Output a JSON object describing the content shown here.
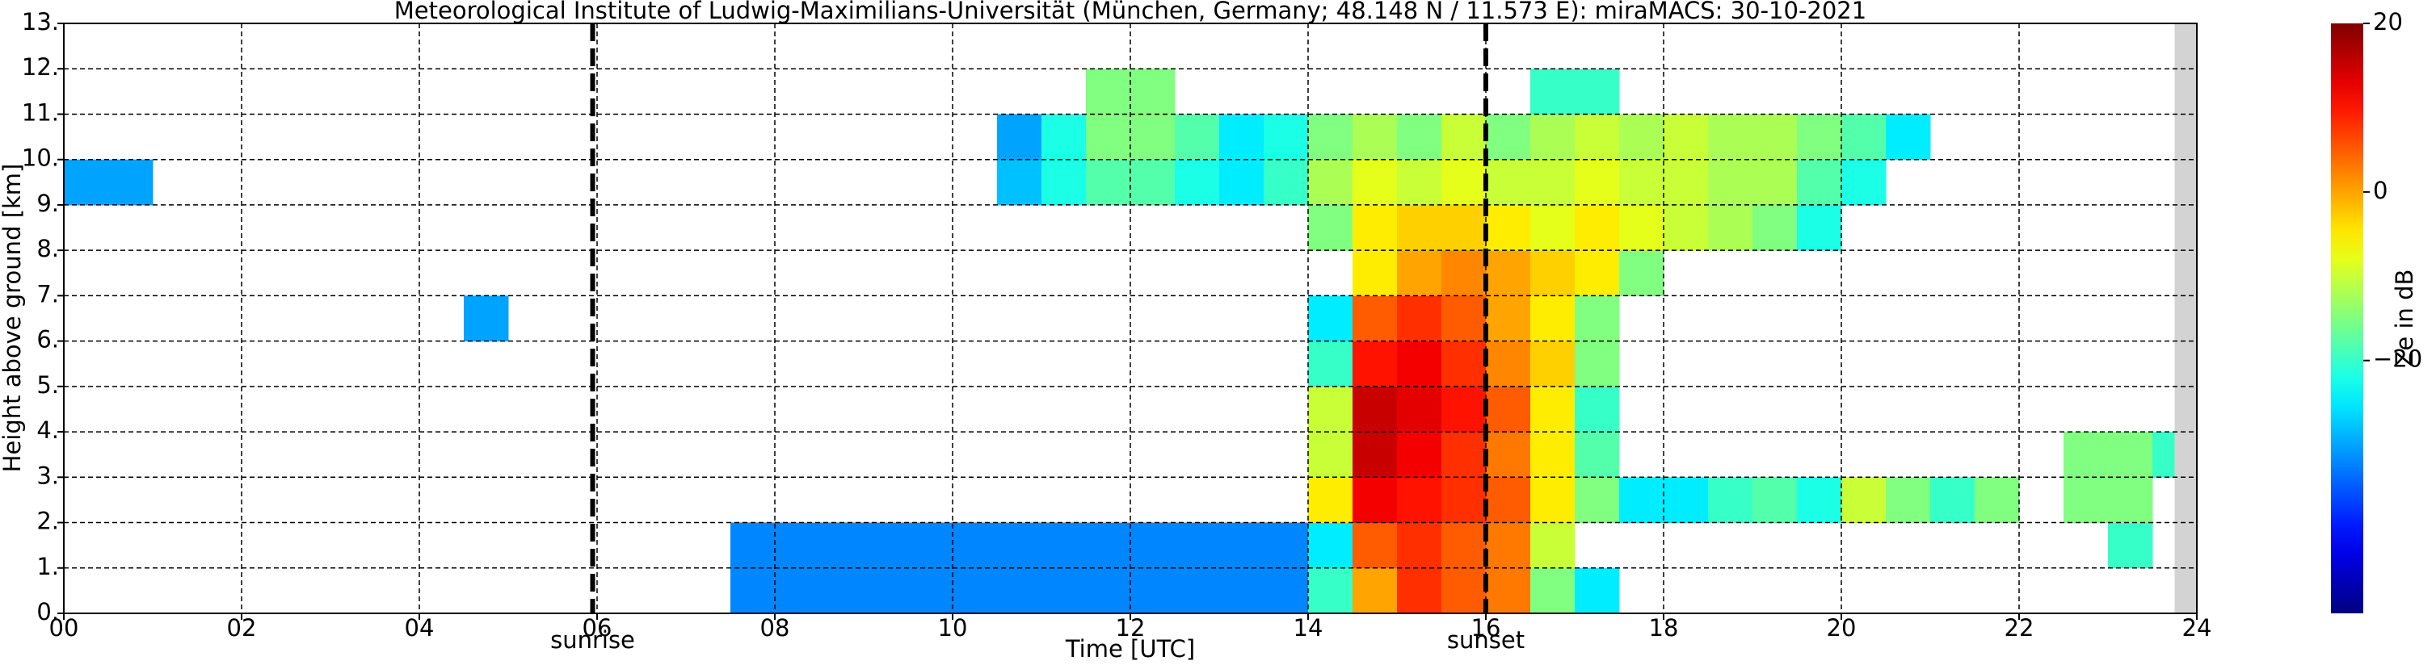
{
  "chart_data": {
    "type": "heatmap",
    "title": "Meteorological Institute of Ludwig-Maximilians-Universität (München, Germany; 48.148 N / 11.573 E):    miraMACS: 30-10-2021",
    "x_label": "Time [UTC]",
    "y_label": "Height above ground [km]",
    "colorbar_label": "Ze in dB",
    "colormap": "jet",
    "clim": [
      -50,
      20
    ],
    "cticks": [
      20,
      0,
      {
        "value": -20,
        "label": "−20"
      }
    ],
    "xlim": [
      0,
      24
    ],
    "ylim": [
      0,
      13
    ],
    "xticks": [
      {
        "value": 0,
        "label": "00"
      },
      {
        "value": 2,
        "label": "02"
      },
      {
        "value": 4,
        "label": "04"
      },
      {
        "value": 6,
        "label": "06"
      },
      {
        "value": 8,
        "label": "08"
      },
      {
        "value": 10,
        "label": "10"
      },
      {
        "value": 12,
        "label": "12"
      },
      {
        "value": 14,
        "label": "14"
      },
      {
        "value": 16,
        "label": "16"
      },
      {
        "value": 18,
        "label": "18"
      },
      {
        "value": 20,
        "label": "20"
      },
      {
        "value": 22,
        "label": "22"
      },
      {
        "value": 24,
        "label": "24"
      }
    ],
    "yticks": [
      {
        "value": 0,
        "label": "0."
      },
      {
        "value": 1,
        "label": "1."
      },
      {
        "value": 2,
        "label": "2."
      },
      {
        "value": 3,
        "label": "3."
      },
      {
        "value": 4,
        "label": "4."
      },
      {
        "value": 5,
        "label": "5."
      },
      {
        "value": 6,
        "label": "6."
      },
      {
        "value": 7,
        "label": "7."
      },
      {
        "value": 8,
        "label": "8."
      },
      {
        "value": 9,
        "label": "9."
      },
      {
        "value": 10,
        "label": "10."
      },
      {
        "value": 11,
        "label": "11."
      },
      {
        "value": 12,
        "label": "12."
      },
      {
        "value": 13,
        "label": "13."
      }
    ],
    "grid": true,
    "markers": [
      {
        "x": 5.95,
        "label": "sunrise"
      },
      {
        "x": 16.0,
        "label": "sunset"
      }
    ],
    "no_data_xlim": [
      23.75,
      24
    ],
    "no_data_color": "#d3d3d3",
    "x": [
      0,
      0.5,
      1,
      1.5,
      2,
      2.5,
      3,
      3.5,
      4,
      4.5,
      5,
      5.5,
      6,
      6.5,
      7,
      7.5,
      8,
      8.5,
      9,
      9.5,
      10,
      10.5,
      11,
      11.5,
      12,
      12.5,
      13,
      13.5,
      14,
      14.5,
      15,
      15.5,
      16,
      16.5,
      17,
      17.5,
      18,
      18.5,
      19,
      19.5,
      20,
      20.5,
      21,
      21.5,
      22,
      22.5,
      23,
      23.5
    ],
    "y": [
      0,
      1,
      2,
      3,
      4,
      5,
      6,
      7,
      8,
      9,
      10,
      11,
      12
    ],
    "z": [
      [
        null,
        null,
        null,
        null,
        null,
        null,
        null,
        null,
        null,
        null,
        null,
        null,
        null,
        null,
        null,
        -32,
        -32,
        -32,
        -32,
        -32,
        -32,
        -32,
        -32,
        -32,
        -32,
        -32,
        -32,
        -32,
        -20,
        0,
        8,
        5,
        3,
        -15,
        -25,
        null,
        null,
        null,
        null,
        null,
        null,
        null,
        null,
        null,
        null,
        null,
        null,
        null
      ],
      [
        null,
        null,
        null,
        null,
        null,
        null,
        null,
        null,
        null,
        null,
        null,
        null,
        null,
        null,
        null,
        -32,
        -32,
        -32,
        -32,
        -32,
        -32,
        -32,
        -32,
        -32,
        -32,
        -32,
        -32,
        -32,
        -25,
        5,
        8,
        5,
        3,
        -10,
        null,
        null,
        null,
        null,
        null,
        null,
        null,
        null,
        null,
        null,
        null,
        null,
        -20,
        null
      ],
      [
        null,
        null,
        null,
        null,
        null,
        null,
        null,
        null,
        null,
        null,
        null,
        null,
        null,
        null,
        null,
        null,
        null,
        null,
        null,
        null,
        null,
        null,
        null,
        null,
        null,
        null,
        null,
        null,
        -5,
        12,
        10,
        8,
        5,
        -5,
        -15,
        -25,
        -25,
        -20,
        -18,
        -22,
        -10,
        -15,
        -20,
        -15,
        null,
        -15,
        -15,
        null
      ],
      [
        null,
        null,
        null,
        null,
        null,
        null,
        null,
        null,
        null,
        null,
        null,
        null,
        null,
        null,
        null,
        null,
        null,
        null,
        null,
        null,
        null,
        null,
        null,
        null,
        null,
        null,
        null,
        null,
        -10,
        15,
        12,
        8,
        3,
        -5,
        -18,
        null,
        null,
        null,
        null,
        null,
        null,
        null,
        null,
        null,
        null,
        -15,
        -15,
        -20
      ],
      [
        null,
        null,
        null,
        null,
        null,
        null,
        null,
        null,
        null,
        null,
        null,
        null,
        null,
        null,
        null,
        null,
        null,
        null,
        null,
        null,
        null,
        null,
        null,
        null,
        null,
        null,
        null,
        null,
        -10,
        15,
        13,
        10,
        5,
        -5,
        -20,
        null,
        null,
        null,
        null,
        null,
        null,
        null,
        null,
        null,
        null,
        null,
        null,
        null
      ],
      [
        null,
        null,
        null,
        null,
        null,
        null,
        null,
        null,
        null,
        null,
        null,
        null,
        null,
        null,
        null,
        null,
        null,
        null,
        null,
        null,
        null,
        null,
        null,
        null,
        null,
        null,
        null,
        null,
        -20,
        10,
        12,
        8,
        2,
        -3,
        -15,
        null,
        null,
        null,
        null,
        null,
        null,
        null,
        null,
        null,
        null,
        null,
        null,
        null
      ],
      [
        null,
        null,
        null,
        null,
        null,
        null,
        null,
        null,
        null,
        -30,
        null,
        null,
        null,
        null,
        null,
        null,
        null,
        null,
        null,
        null,
        null,
        null,
        null,
        null,
        null,
        null,
        null,
        null,
        -25,
        5,
        8,
        5,
        0,
        -5,
        -15,
        null,
        null,
        null,
        null,
        null,
        null,
        null,
        null,
        null,
        null,
        null,
        null,
        null
      ],
      [
        null,
        null,
        null,
        null,
        null,
        null,
        null,
        null,
        null,
        null,
        null,
        null,
        null,
        null,
        null,
        null,
        null,
        null,
        null,
        null,
        null,
        null,
        null,
        null,
        null,
        null,
        null,
        null,
        null,
        -5,
        0,
        2,
        0,
        -3,
        -5,
        -15,
        null,
        null,
        null,
        null,
        null,
        null,
        null,
        null,
        null,
        null,
        null,
        null
      ],
      [
        null,
        null,
        null,
        null,
        null,
        null,
        null,
        null,
        null,
        null,
        null,
        null,
        null,
        null,
        null,
        null,
        null,
        null,
        null,
        null,
        null,
        null,
        null,
        null,
        null,
        null,
        null,
        null,
        -15,
        -5,
        -3,
        -3,
        -5,
        -8,
        -5,
        -8,
        -10,
        -12,
        -15,
        -22,
        null,
        null,
        null,
        null,
        null,
        null,
        null,
        null
      ],
      [
        -30,
        -30,
        null,
        null,
        null,
        null,
        null,
        null,
        null,
        null,
        null,
        null,
        null,
        null,
        null,
        null,
        null,
        null,
        null,
        null,
        null,
        -28,
        -22,
        -18,
        -18,
        -22,
        -25,
        -20,
        -12,
        -8,
        -10,
        -8,
        -10,
        -10,
        -8,
        -10,
        -10,
        -12,
        -12,
        -18,
        -22,
        null,
        null,
        null,
        null,
        null,
        null,
        null
      ],
      [
        null,
        null,
        null,
        null,
        null,
        null,
        null,
        null,
        null,
        null,
        null,
        null,
        null,
        null,
        null,
        null,
        null,
        null,
        null,
        null,
        null,
        -30,
        -22,
        -15,
        -15,
        -18,
        -25,
        -22,
        -15,
        -12,
        -15,
        -10,
        -15,
        -12,
        -10,
        -12,
        -10,
        -12,
        -12,
        -15,
        -18,
        -25,
        null,
        null,
        null,
        null,
        null,
        null
      ],
      [
        null,
        null,
        null,
        null,
        null,
        null,
        null,
        null,
        null,
        null,
        null,
        null,
        null,
        null,
        null,
        null,
        null,
        null,
        null,
        null,
        null,
        null,
        null,
        -15,
        -15,
        null,
        null,
        null,
        null,
        null,
        null,
        null,
        null,
        -20,
        -20,
        null,
        null,
        null,
        null,
        null,
        null,
        null,
        null,
        null,
        null,
        null,
        null,
        null
      ],
      [
        null,
        null,
        null,
        null,
        null,
        null,
        null,
        null,
        null,
        null,
        null,
        null,
        null,
        null,
        null,
        null,
        null,
        null,
        null,
        null,
        null,
        null,
        null,
        null,
        null,
        null,
        null,
        null,
        null,
        null,
        null,
        null,
        null,
        null,
        null,
        null,
        null,
        null,
        null,
        null,
        null,
        null,
        null,
        null,
        null,
        null,
        null,
        null
      ]
    ]
  }
}
